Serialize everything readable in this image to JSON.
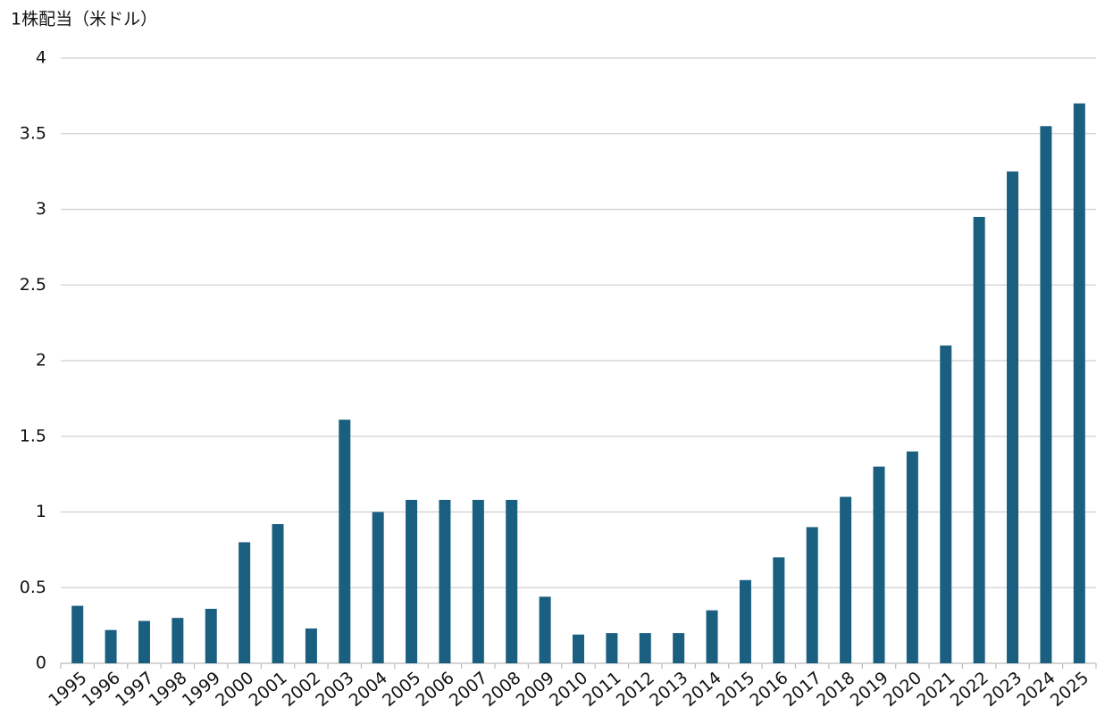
{
  "chart_data": {
    "type": "bar",
    "y_label": "1株配当（米ドル）",
    "categories": [
      "1995",
      "1996",
      "1997",
      "1998",
      "1999",
      "2000",
      "2001",
      "2002",
      "2003",
      "2004",
      "2005",
      "2006",
      "2007",
      "2008",
      "2009",
      "2010",
      "2011",
      "2012",
      "2013",
      "2014",
      "2015",
      "2016",
      "2017",
      "2018",
      "2019",
      "2020",
      "2021",
      "2022",
      "2023",
      "2024",
      "2025"
    ],
    "values": [
      0.38,
      0.22,
      0.28,
      0.3,
      0.36,
      0.8,
      0.92,
      0.23,
      1.61,
      1.0,
      1.08,
      1.08,
      1.08,
      1.08,
      0.44,
      0.19,
      0.2,
      0.2,
      0.2,
      0.35,
      0.55,
      0.7,
      0.9,
      1.1,
      1.3,
      1.4,
      2.1,
      2.95,
      3.25,
      3.55,
      3.7
    ],
    "color": "#1a5f80",
    "ylim": [
      0,
      4
    ],
    "yticks": [
      0,
      0.5,
      1,
      1.5,
      2,
      2.5,
      3,
      3.5,
      4
    ],
    "grid": true
  }
}
